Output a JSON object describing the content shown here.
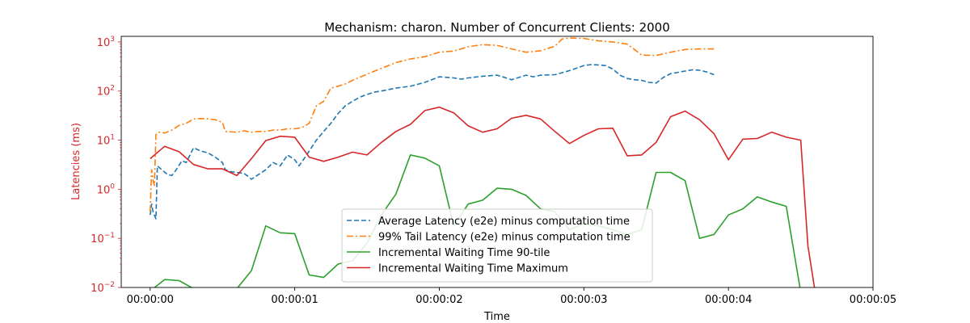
{
  "chart_data": {
    "type": "line",
    "title": "Mechanism: charon. Number of Concurrent Clients: 2000",
    "xlabel": "Time",
    "ylabel": "Latencies (ms)",
    "ylabel_color": "#d62728",
    "xlim": [
      -0.2,
      5.0
    ],
    "ylim": [
      0.01,
      1300
    ],
    "yscale": "log",
    "x_ticks": [
      {
        "value": 0,
        "label": "00:00:00"
      },
      {
        "value": 1,
        "label": "00:00:01"
      },
      {
        "value": 2,
        "label": "00:00:02"
      },
      {
        "value": 3,
        "label": "00:00:03"
      },
      {
        "value": 4,
        "label": "00:00:04"
      },
      {
        "value": 5,
        "label": "00:00:05"
      }
    ],
    "y_ticks": [
      {
        "value": 0.01,
        "base": "10",
        "exp": "−2"
      },
      {
        "value": 0.1,
        "base": "10",
        "exp": "−1"
      },
      {
        "value": 1,
        "base": "10",
        "exp": "0"
      },
      {
        "value": 10,
        "base": "10",
        "exp": "1"
      },
      {
        "value": 100,
        "base": "10",
        "exp": "2"
      },
      {
        "value": 1000,
        "base": "10",
        "exp": "3"
      }
    ],
    "grid": false,
    "legend_position": "lower-center",
    "series": [
      {
        "name": "Average Latency (e2e) minus computation time",
        "color": "#1f77b4",
        "dash": "6,3",
        "points": [
          [
            0.0,
            0.3
          ],
          [
            0.01,
            0.5
          ],
          [
            0.02,
            0.35
          ],
          [
            0.04,
            0.25
          ],
          [
            0.05,
            3.0
          ],
          [
            0.08,
            2.5
          ],
          [
            0.12,
            2.0
          ],
          [
            0.15,
            1.9
          ],
          [
            0.18,
            2.5
          ],
          [
            0.22,
            3.8
          ],
          [
            0.25,
            3.5
          ],
          [
            0.3,
            7.0
          ],
          [
            0.35,
            6.0
          ],
          [
            0.4,
            5.5
          ],
          [
            0.45,
            4.5
          ],
          [
            0.5,
            3.5
          ],
          [
            0.52,
            2.5
          ],
          [
            0.55,
            2.3
          ],
          [
            0.6,
            2.2
          ],
          [
            0.65,
            2.1
          ],
          [
            0.68,
            1.8
          ],
          [
            0.7,
            1.6
          ],
          [
            0.75,
            2.0
          ],
          [
            0.8,
            2.5
          ],
          [
            0.85,
            3.5
          ],
          [
            0.9,
            3.0
          ],
          [
            0.95,
            5.0
          ],
          [
            1.0,
            4.0
          ],
          [
            1.03,
            3.0
          ],
          [
            1.06,
            4.0
          ],
          [
            1.1,
            6.0
          ],
          [
            1.15,
            10.0
          ],
          [
            1.2,
            15.0
          ],
          [
            1.25,
            22.0
          ],
          [
            1.3,
            35.0
          ],
          [
            1.35,
            50.0
          ],
          [
            1.4,
            62.0
          ],
          [
            1.45,
            75.0
          ],
          [
            1.5,
            85.0
          ],
          [
            1.55,
            95.0
          ],
          [
            1.6,
            100.0
          ],
          [
            1.7,
            115.0
          ],
          [
            1.8,
            125.0
          ],
          [
            1.9,
            150.0
          ],
          [
            2.0,
            195.0
          ],
          [
            2.1,
            185.0
          ],
          [
            2.15,
            175.0
          ],
          [
            2.2,
            185.0
          ],
          [
            2.3,
            200.0
          ],
          [
            2.4,
            210.0
          ],
          [
            2.45,
            190.0
          ],
          [
            2.5,
            170.0
          ],
          [
            2.6,
            210.0
          ],
          [
            2.65,
            195.0
          ],
          [
            2.7,
            210.0
          ],
          [
            2.8,
            215.0
          ],
          [
            2.9,
            260.0
          ],
          [
            3.0,
            330.0
          ],
          [
            3.05,
            345.0
          ],
          [
            3.1,
            340.0
          ],
          [
            3.15,
            330.0
          ],
          [
            3.2,
            280.0
          ],
          [
            3.25,
            210.0
          ],
          [
            3.3,
            180.0
          ],
          [
            3.35,
            170.0
          ],
          [
            3.4,
            165.0
          ],
          [
            3.45,
            150.0
          ],
          [
            3.5,
            145.0
          ],
          [
            3.55,
            190.0
          ],
          [
            3.6,
            225.0
          ],
          [
            3.65,
            240.0
          ],
          [
            3.7,
            255.0
          ],
          [
            3.75,
            270.0
          ],
          [
            3.8,
            265.0
          ],
          [
            3.85,
            245.0
          ],
          [
            3.9,
            215.0
          ]
        ]
      },
      {
        "name": "99% Tail Latency (e2e) minus computation time",
        "color": "#ff7f0e",
        "dash": "8,3,2,3",
        "points": [
          [
            0.0,
            0.35
          ],
          [
            0.01,
            2.5
          ],
          [
            0.02,
            1.5
          ],
          [
            0.03,
            1.2
          ],
          [
            0.04,
            13.0
          ],
          [
            0.06,
            14.5
          ],
          [
            0.1,
            14.0
          ],
          [
            0.15,
            16.0
          ],
          [
            0.2,
            20.0
          ],
          [
            0.25,
            22.0
          ],
          [
            0.3,
            27.0
          ],
          [
            0.35,
            27.5
          ],
          [
            0.4,
            27.0
          ],
          [
            0.45,
            26.0
          ],
          [
            0.5,
            23.0
          ],
          [
            0.52,
            15.0
          ],
          [
            0.6,
            14.5
          ],
          [
            0.65,
            15.5
          ],
          [
            0.7,
            14.5
          ],
          [
            0.75,
            15.0
          ],
          [
            0.8,
            15.0
          ],
          [
            0.85,
            16.0
          ],
          [
            0.9,
            16.0
          ],
          [
            0.95,
            17.0
          ],
          [
            1.0,
            17.0
          ],
          [
            1.05,
            18.0
          ],
          [
            1.1,
            22.0
          ],
          [
            1.15,
            50.0
          ],
          [
            1.2,
            62.0
          ],
          [
            1.25,
            115.0
          ],
          [
            1.3,
            125.0
          ],
          [
            1.35,
            140.0
          ],
          [
            1.4,
            165.0
          ],
          [
            1.5,
            220.0
          ],
          [
            1.6,
            290.0
          ],
          [
            1.7,
            380.0
          ],
          [
            1.8,
            450.0
          ],
          [
            1.9,
            500.0
          ],
          [
            2.0,
            620.0
          ],
          [
            2.1,
            650.0
          ],
          [
            2.2,
            800.0
          ],
          [
            2.3,
            880.0
          ],
          [
            2.4,
            850.0
          ],
          [
            2.5,
            720.0
          ],
          [
            2.6,
            620.0
          ],
          [
            2.7,
            660.0
          ],
          [
            2.8,
            820.0
          ],
          [
            2.85,
            1150.0
          ],
          [
            2.9,
            1200.0
          ],
          [
            3.0,
            1180.0
          ],
          [
            3.1,
            1050.0
          ],
          [
            3.2,
            1000.0
          ],
          [
            3.3,
            900.0
          ],
          [
            3.35,
            700.0
          ],
          [
            3.4,
            540.0
          ],
          [
            3.5,
            530.0
          ],
          [
            3.6,
            620.0
          ],
          [
            3.7,
            700.0
          ],
          [
            3.8,
            720.0
          ],
          [
            3.9,
            720.0
          ]
        ]
      },
      {
        "name": "Incremental Waiting Time 90-tile",
        "color": "#2ca02c",
        "dash": "",
        "points": [
          [
            0.0,
            0.0085
          ],
          [
            0.1,
            0.0145
          ],
          [
            0.2,
            0.0138
          ],
          [
            0.3,
            0.0095
          ],
          [
            0.4,
            0.008
          ],
          [
            0.5,
            0.0075
          ],
          [
            0.6,
            0.0095
          ],
          [
            0.7,
            0.022
          ],
          [
            0.8,
            0.18
          ],
          [
            0.9,
            0.13
          ],
          [
            1.0,
            0.125
          ],
          [
            1.1,
            0.018
          ],
          [
            1.2,
            0.016
          ],
          [
            1.3,
            0.03
          ],
          [
            1.4,
            0.035
          ],
          [
            1.5,
            0.08
          ],
          [
            1.6,
            0.3
          ],
          [
            1.7,
            0.8
          ],
          [
            1.8,
            5.0
          ],
          [
            1.9,
            4.3
          ],
          [
            2.0,
            3.0
          ],
          [
            2.1,
            0.18
          ],
          [
            2.2,
            0.5
          ],
          [
            2.3,
            0.6
          ],
          [
            2.4,
            1.05
          ],
          [
            2.5,
            1.0
          ],
          [
            2.6,
            0.75
          ],
          [
            2.7,
            0.4
          ],
          [
            2.8,
            0.35
          ],
          [
            2.9,
            0.15
          ],
          [
            3.0,
            0.2
          ],
          [
            3.1,
            0.18
          ],
          [
            3.2,
            0.15
          ],
          [
            3.3,
            0.12
          ],
          [
            3.4,
            0.15
          ],
          [
            3.5,
            2.2
          ],
          [
            3.6,
            2.2
          ],
          [
            3.7,
            1.5
          ],
          [
            3.8,
            0.1
          ],
          [
            3.9,
            0.12
          ],
          [
            4.0,
            0.3
          ],
          [
            4.1,
            0.4
          ],
          [
            4.2,
            0.7
          ],
          [
            4.3,
            0.55
          ],
          [
            4.4,
            0.45
          ],
          [
            4.5,
            0.008
          ],
          [
            4.6,
            0.007
          ]
        ]
      },
      {
        "name": "Incremental Waiting Time Maximum",
        "color": "#d62728",
        "dash": "",
        "points": [
          [
            0.0,
            4.2
          ],
          [
            0.1,
            7.5
          ],
          [
            0.2,
            5.8
          ],
          [
            0.3,
            3.2
          ],
          [
            0.4,
            2.6
          ],
          [
            0.5,
            2.6
          ],
          [
            0.6,
            1.9
          ],
          [
            0.7,
            4.2
          ],
          [
            0.8,
            9.8
          ],
          [
            0.9,
            12.0
          ],
          [
            1.0,
            11.5
          ],
          [
            1.1,
            4.5
          ],
          [
            1.2,
            3.7
          ],
          [
            1.3,
            4.5
          ],
          [
            1.4,
            5.7
          ],
          [
            1.5,
            5.0
          ],
          [
            1.6,
            9.0
          ],
          [
            1.7,
            15.0
          ],
          [
            1.8,
            21.0
          ],
          [
            1.9,
            40.0
          ],
          [
            2.0,
            47.0
          ],
          [
            2.1,
            36.0
          ],
          [
            2.2,
            19.5
          ],
          [
            2.3,
            14.5
          ],
          [
            2.4,
            17.0
          ],
          [
            2.5,
            28.0
          ],
          [
            2.6,
            32.0
          ],
          [
            2.7,
            27.0
          ],
          [
            2.8,
            15.0
          ],
          [
            2.9,
            8.5
          ],
          [
            3.0,
            12.5
          ],
          [
            3.1,
            17.0
          ],
          [
            3.2,
            17.5
          ],
          [
            3.3,
            4.8
          ],
          [
            3.4,
            5.0
          ],
          [
            3.5,
            9.0
          ],
          [
            3.6,
            30.0
          ],
          [
            3.7,
            39.0
          ],
          [
            3.8,
            26.0
          ],
          [
            3.9,
            13.5
          ],
          [
            4.0,
            4.0
          ],
          [
            4.1,
            10.5
          ],
          [
            4.2,
            10.8
          ],
          [
            4.3,
            14.5
          ],
          [
            4.4,
            11.5
          ],
          [
            4.5,
            10.0
          ],
          [
            4.55,
            0.07
          ],
          [
            4.6,
            0.008
          ]
        ]
      }
    ]
  }
}
